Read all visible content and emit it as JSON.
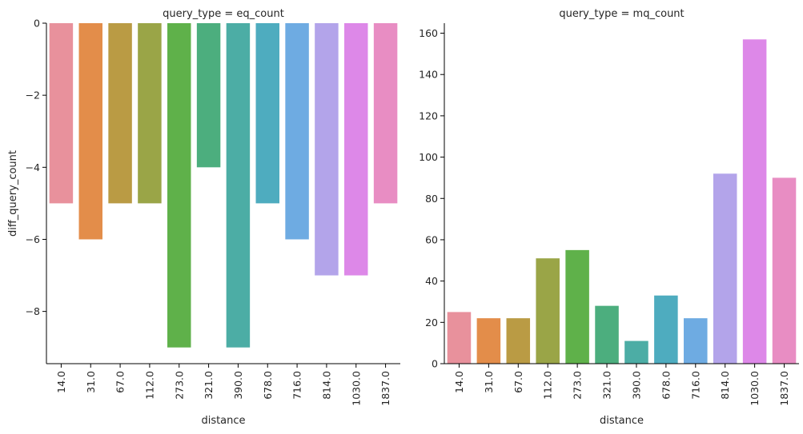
{
  "chart_data": [
    {
      "type": "bar",
      "title": "query_type = eq_count",
      "xlabel": "distance",
      "ylabel": "diff_query_count",
      "categories": [
        "14.0",
        "31.0",
        "67.0",
        "112.0",
        "273.0",
        "321.0",
        "390.0",
        "678.0",
        "716.0",
        "814.0",
        "1030.0",
        "1837.0"
      ],
      "values": [
        -5,
        -6,
        -5,
        -5,
        -9,
        -4,
        -9,
        -5,
        -6,
        -7,
        -7,
        -5
      ],
      "ylim": [
        -9.45,
        0
      ],
      "yticks": [
        0,
        -2,
        -4,
        -6,
        -8
      ],
      "ytick_labels": [
        "0",
        "−2",
        "−4",
        "−6",
        "−8"
      ],
      "grid": false
    },
    {
      "type": "bar",
      "title": "query_type = mq_count",
      "xlabel": "distance",
      "ylabel": "",
      "categories": [
        "14.0",
        "31.0",
        "67.0",
        "112.0",
        "273.0",
        "321.0",
        "390.0",
        "678.0",
        "716.0",
        "814.0",
        "1030.0",
        "1837.0"
      ],
      "values": [
        25,
        22,
        22,
        51,
        55,
        28,
        11,
        33,
        22,
        92,
        157,
        90
      ],
      "ylim": [
        0,
        164.85
      ],
      "yticks": [
        0,
        20,
        40,
        60,
        80,
        100,
        120,
        140,
        160
      ],
      "ytick_labels": [
        "0",
        "20",
        "40",
        "60",
        "80",
        "100",
        "120",
        "140",
        "160"
      ],
      "grid": false
    }
  ],
  "colors": [
    "#e8919c",
    "#e38d4a",
    "#ba9b44",
    "#9aa547",
    "#5fb14a",
    "#4cae7e",
    "#4cada5",
    "#4eacbf",
    "#6eabe2",
    "#b3a4ea",
    "#dd88e8",
    "#e88dc3"
  ]
}
